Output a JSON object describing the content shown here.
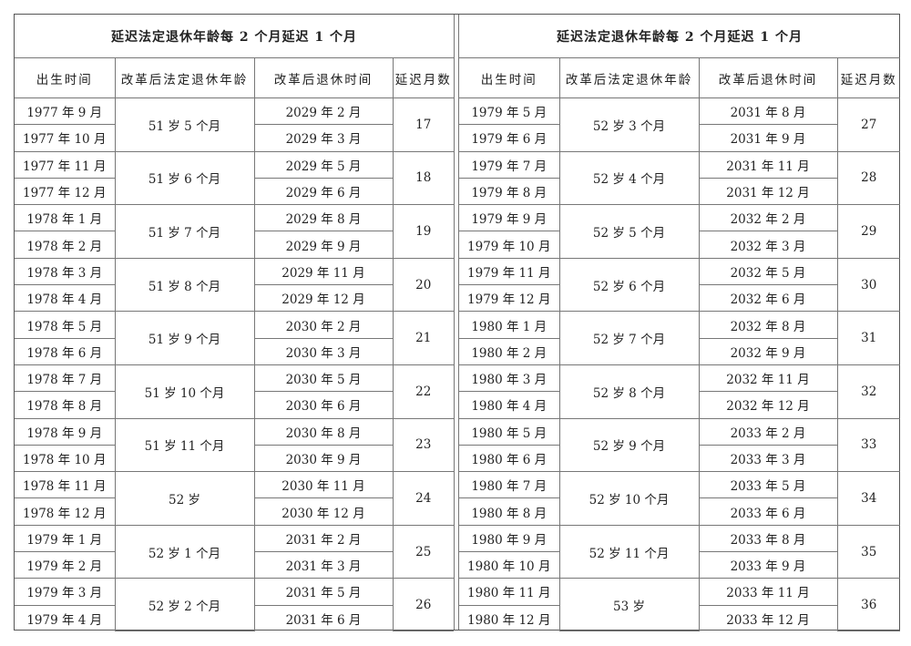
{
  "tables": [
    {
      "title": "延迟法定退休年龄每 2 个月延迟 1 个月",
      "headers": [
        "出生时间",
        "改革后法定退休年龄",
        "改革后退休时间",
        "延迟月数"
      ],
      "groups": [
        {
          "age": "51 岁 5 个月",
          "delay": "17",
          "rows": [
            {
              "birth": "1977 年 9 月",
              "retire": "2029 年 2 月"
            },
            {
              "birth": "1977 年 10 月",
              "retire": "2029 年 3 月"
            }
          ]
        },
        {
          "age": "51 岁 6 个月",
          "delay": "18",
          "rows": [
            {
              "birth": "1977 年 11 月",
              "retire": "2029 年 5 月"
            },
            {
              "birth": "1977 年 12 月",
              "retire": "2029 年 6 月"
            }
          ]
        },
        {
          "age": "51 岁 7 个月",
          "delay": "19",
          "rows": [
            {
              "birth": "1978 年 1 月",
              "retire": "2029 年 8 月"
            },
            {
              "birth": "1978 年 2 月",
              "retire": "2029 年 9 月"
            }
          ]
        },
        {
          "age": "51 岁 8 个月",
          "delay": "20",
          "rows": [
            {
              "birth": "1978 年 3 月",
              "retire": "2029 年 11 月"
            },
            {
              "birth": "1978 年 4 月",
              "retire": "2029 年 12 月"
            }
          ]
        },
        {
          "age": "51 岁 9 个月",
          "delay": "21",
          "rows": [
            {
              "birth": "1978 年 5 月",
              "retire": "2030 年 2 月"
            },
            {
              "birth": "1978 年 6 月",
              "retire": "2030 年 3 月"
            }
          ]
        },
        {
          "age": "51 岁 10 个月",
          "delay": "22",
          "rows": [
            {
              "birth": "1978 年 7 月",
              "retire": "2030 年 5 月"
            },
            {
              "birth": "1978 年 8 月",
              "retire": "2030 年 6 月"
            }
          ]
        },
        {
          "age": "51 岁 11 个月",
          "delay": "23",
          "rows": [
            {
              "birth": "1978 年 9 月",
              "retire": "2030 年 8 月"
            },
            {
              "birth": "1978 年 10 月",
              "retire": "2030 年 9 月"
            }
          ]
        },
        {
          "age": "52 岁",
          "delay": "24",
          "rows": [
            {
              "birth": "1978 年 11 月",
              "retire": "2030 年 11 月"
            },
            {
              "birth": "1978 年 12 月",
              "retire": "2030 年 12 月"
            }
          ]
        },
        {
          "age": "52 岁 1 个月",
          "delay": "25",
          "rows": [
            {
              "birth": "1979 年 1 月",
              "retire": "2031 年 2 月"
            },
            {
              "birth": "1979 年 2 月",
              "retire": "2031 年 3 月"
            }
          ]
        },
        {
          "age": "52 岁 2 个月",
          "delay": "26",
          "rows": [
            {
              "birth": "1979 年 3 月",
              "retire": "2031 年 5 月"
            },
            {
              "birth": "1979 年 4 月",
              "retire": "2031 年 6 月"
            }
          ]
        }
      ]
    },
    {
      "title": "延迟法定退休年龄每 2 个月延迟 1 个月",
      "headers": [
        "出生时间",
        "改革后法定退休年龄",
        "改革后退休时间",
        "延迟月数"
      ],
      "groups": [
        {
          "age": "52 岁 3 个月",
          "delay": "27",
          "rows": [
            {
              "birth": "1979 年 5 月",
              "retire": "2031 年 8 月"
            },
            {
              "birth": "1979 年 6 月",
              "retire": "2031 年 9 月"
            }
          ]
        },
        {
          "age": "52 岁 4 个月",
          "delay": "28",
          "rows": [
            {
              "birth": "1979 年 7 月",
              "retire": "2031 年 11 月"
            },
            {
              "birth": "1979 年 8 月",
              "retire": "2031 年 12 月"
            }
          ]
        },
        {
          "age": "52 岁 5 个月",
          "delay": "29",
          "rows": [
            {
              "birth": "1979 年 9 月",
              "retire": "2032 年 2 月"
            },
            {
              "birth": "1979 年 10 月",
              "retire": "2032 年 3 月"
            }
          ]
        },
        {
          "age": "52 岁 6 个月",
          "delay": "30",
          "rows": [
            {
              "birth": "1979 年 11 月",
              "retire": "2032 年 5 月"
            },
            {
              "birth": "1979 年 12 月",
              "retire": "2032 年 6 月"
            }
          ]
        },
        {
          "age": "52 岁 7 个月",
          "delay": "31",
          "rows": [
            {
              "birth": "1980 年 1 月",
              "retire": "2032 年 8 月"
            },
            {
              "birth": "1980 年 2 月",
              "retire": "2032 年 9 月"
            }
          ]
        },
        {
          "age": "52 岁 8 个月",
          "delay": "32",
          "rows": [
            {
              "birth": "1980 年 3 月",
              "retire": "2032 年 11 月"
            },
            {
              "birth": "1980 年 4 月",
              "retire": "2032 年 12 月"
            }
          ]
        },
        {
          "age": "52 岁 9 个月",
          "delay": "33",
          "rows": [
            {
              "birth": "1980 年 5 月",
              "retire": "2033 年 2 月"
            },
            {
              "birth": "1980 年 6 月",
              "retire": "2033 年 3 月"
            }
          ]
        },
        {
          "age": "52 岁 10 个月",
          "delay": "34",
          "rows": [
            {
              "birth": "1980 年 7 月",
              "retire": "2033 年 5 月"
            },
            {
              "birth": "1980 年 8 月",
              "retire": "2033 年 6 月"
            }
          ]
        },
        {
          "age": "52 岁 11 个月",
          "delay": "35",
          "rows": [
            {
              "birth": "1980 年 9 月",
              "retire": "2033 年 8 月"
            },
            {
              "birth": "1980 年 10 月",
              "retire": "2033 年 9 月"
            }
          ]
        },
        {
          "age": "53 岁",
          "delay": "36",
          "rows": [
            {
              "birth": "1980 年 11 月",
              "retire": "2033 年 11 月"
            },
            {
              "birth": "1980 年 12 月",
              "retire": "2033 年 12 月"
            }
          ]
        }
      ]
    }
  ]
}
